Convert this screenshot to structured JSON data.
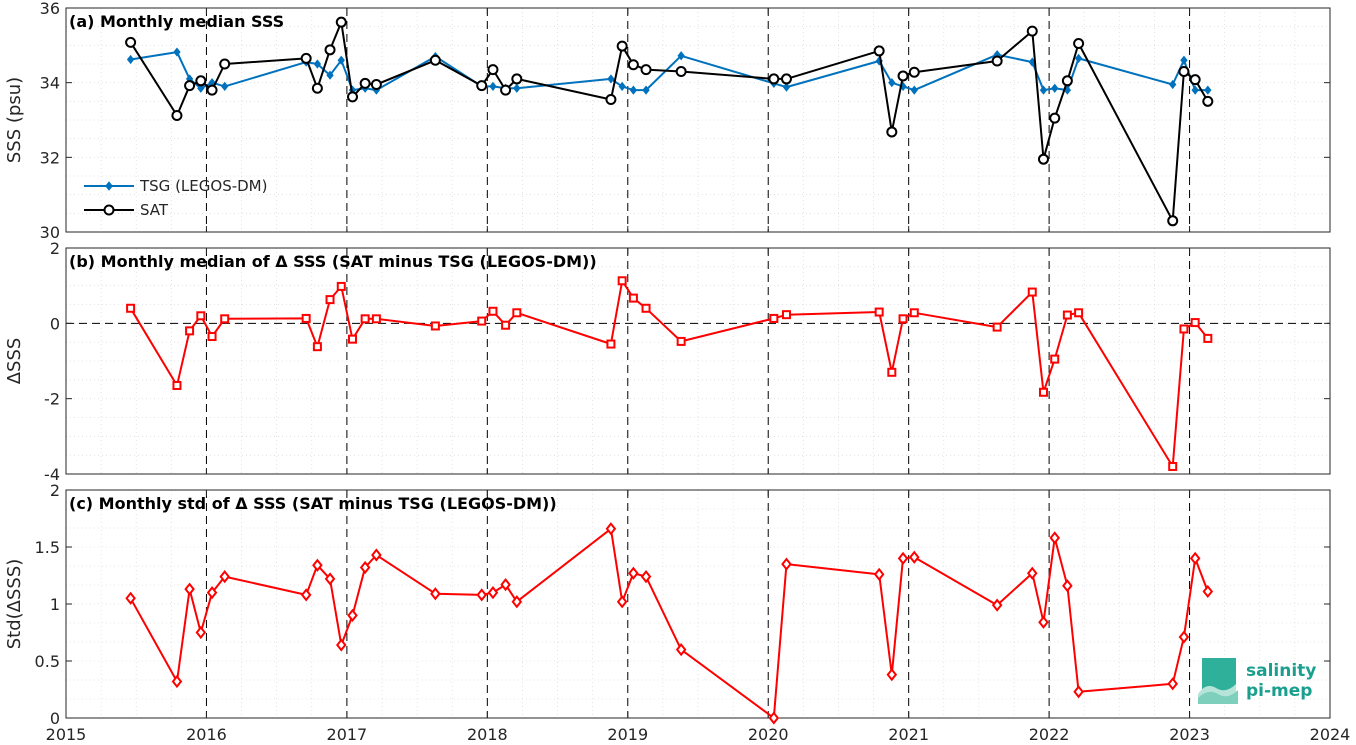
{
  "chart_data": [
    {
      "type": "line",
      "title": "(a) Monthly median SSS",
      "xlabel": "",
      "ylabel": "SSS (psu)",
      "xlim": [
        2015,
        2024
      ],
      "ylim": [
        30,
        36
      ],
      "yticks": [
        "30",
        "32",
        "34",
        "36"
      ],
      "xticks": [
        "2015",
        "2016",
        "2017",
        "2018",
        "2019",
        "2020",
        "2021",
        "2022",
        "2023",
        "2024"
      ],
      "grid": true,
      "legend_position": "bottom-left",
      "series": [
        {
          "name": "TSG (LEGOS-DM)",
          "color": "#0072bd",
          "marker": "diamond",
          "x": [
            2015.46,
            2015.79,
            2015.88,
            2015.96,
            2016.04,
            2016.13,
            2016.71,
            2016.79,
            2016.88,
            2016.96,
            2017.04,
            2017.13,
            2017.21,
            2017.63,
            2017.96,
            2018.04,
            2018.13,
            2018.21,
            2018.88,
            2018.96,
            2019.04,
            2019.13,
            2019.38,
            2020.04,
            2020.13,
            2020.79,
            2020.88,
            2020.96,
            2021.04,
            2021.63,
            2021.88,
            2021.96,
            2022.04,
            2022.13,
            2022.21,
            2022.88,
            2022.96,
            2023.04,
            2023.13
          ],
          "y": [
            34.62,
            34.82,
            34.1,
            33.85,
            34.0,
            33.9,
            34.55,
            34.5,
            34.2,
            34.6,
            33.8,
            33.85,
            33.8,
            34.7,
            33.9,
            33.9,
            33.85,
            33.85,
            34.1,
            33.9,
            33.8,
            33.8,
            34.72,
            33.98,
            33.88,
            34.58,
            34.0,
            33.9,
            33.8,
            34.75,
            34.55,
            33.8,
            33.85,
            33.8,
            34.65,
            33.95,
            34.6,
            33.8,
            33.8
          ]
        },
        {
          "name": "SAT",
          "color": "#000000",
          "marker": "circle",
          "x": [
            2015.46,
            2015.79,
            2015.88,
            2015.96,
            2016.04,
            2016.13,
            2016.71,
            2016.79,
            2016.88,
            2016.96,
            2017.04,
            2017.13,
            2017.21,
            2017.63,
            2017.96,
            2018.04,
            2018.13,
            2018.21,
            2018.88,
            2018.96,
            2019.04,
            2019.13,
            2019.38,
            2020.04,
            2020.13,
            2020.79,
            2020.88,
            2020.96,
            2021.04,
            2021.63,
            2021.88,
            2021.96,
            2022.04,
            2022.13,
            2022.21,
            2022.88,
            2022.96,
            2023.04,
            2023.13
          ],
          "y": [
            35.08,
            33.12,
            33.92,
            34.05,
            33.8,
            34.5,
            34.65,
            33.85,
            34.88,
            35.62,
            33.62,
            33.98,
            33.95,
            34.6,
            33.92,
            34.35,
            33.8,
            34.1,
            33.55,
            34.98,
            34.48,
            34.35,
            34.3,
            34.1,
            34.1,
            34.85,
            32.68,
            34.18,
            34.28,
            34.58,
            35.38,
            31.95,
            33.05,
            34.05,
            35.05,
            30.3,
            34.3,
            34.08,
            33.5
          ]
        }
      ]
    },
    {
      "type": "line",
      "title": "(b) Monthly median of Δ SSS (SAT minus TSG (LEGOS-DM))",
      "xlabel": "",
      "ylabel": "ΔSSS",
      "xlim": [
        2015,
        2024
      ],
      "ylim": [
        -4,
        2
      ],
      "yticks": [
        "-4",
        "-2",
        "0",
        "2"
      ],
      "xticks": [
        "2015",
        "2016",
        "2017",
        "2018",
        "2019",
        "2020",
        "2021",
        "2022",
        "2023",
        "2024"
      ],
      "grid": true,
      "series": [
        {
          "color": "#ff0000",
          "marker": "square",
          "x": [
            2015.46,
            2015.79,
            2015.88,
            2015.96,
            2016.04,
            2016.13,
            2016.71,
            2016.79,
            2016.88,
            2016.96,
            2017.04,
            2017.13,
            2017.21,
            2017.63,
            2017.96,
            2018.04,
            2018.13,
            2018.21,
            2018.88,
            2018.96,
            2019.04,
            2019.13,
            2019.38,
            2020.04,
            2020.13,
            2020.79,
            2020.88,
            2020.96,
            2021.04,
            2021.63,
            2021.88,
            2021.96,
            2022.04,
            2022.13,
            2022.21,
            2022.88,
            2022.96,
            2023.04,
            2023.13
          ],
          "y": [
            0.4,
            -1.65,
            -0.2,
            0.2,
            -0.35,
            0.12,
            0.13,
            -0.62,
            0.63,
            0.98,
            -0.42,
            0.12,
            0.12,
            -0.07,
            0.06,
            0.32,
            -0.05,
            0.28,
            -0.55,
            1.13,
            0.67,
            0.4,
            -0.48,
            0.13,
            0.23,
            0.3,
            -1.3,
            0.12,
            0.28,
            -0.1,
            0.83,
            -1.83,
            -0.95,
            0.22,
            0.28,
            -3.8,
            -0.15,
            0.02,
            -0.4
          ]
        }
      ]
    },
    {
      "type": "line",
      "title": "(c) Monthly std of Δ SSS (SAT minus TSG (LEGOS-DM))",
      "xlabel": "",
      "ylabel": "Std(ΔSSS)",
      "xlim": [
        2015,
        2024
      ],
      "ylim": [
        0,
        2
      ],
      "yticks": [
        "0",
        "0.5",
        "1",
        "1.5",
        "2"
      ],
      "xticks": [
        "2015",
        "2016",
        "2017",
        "2018",
        "2019",
        "2020",
        "2021",
        "2022",
        "2023",
        "2024"
      ],
      "grid": true,
      "series": [
        {
          "color": "#ff0000",
          "marker": "diamond",
          "x": [
            2015.46,
            2015.79,
            2015.88,
            2015.96,
            2016.04,
            2016.13,
            2016.71,
            2016.79,
            2016.88,
            2016.96,
            2017.04,
            2017.13,
            2017.21,
            2017.63,
            2017.96,
            2018.04,
            2018.13,
            2018.21,
            2018.88,
            2018.96,
            2019.04,
            2019.13,
            2019.38,
            2020.04,
            2020.13,
            2020.79,
            2020.88,
            2020.96,
            2021.04,
            2021.63,
            2021.88,
            2021.96,
            2022.04,
            2022.13,
            2022.21,
            2022.88,
            2022.96,
            2023.04,
            2023.13
          ],
          "y": [
            1.05,
            0.32,
            1.13,
            0.75,
            1.1,
            1.24,
            1.08,
            1.34,
            1.22,
            0.64,
            0.9,
            1.32,
            1.43,
            1.09,
            1.08,
            1.1,
            1.17,
            1.02,
            1.66,
            1.02,
            1.27,
            1.24,
            0.6,
            0.0,
            1.35,
            1.26,
            0.38,
            1.4,
            1.41,
            0.99,
            1.27,
            0.84,
            1.58,
            1.16,
            0.23,
            0.3,
            0.71,
            1.4,
            1.11
          ]
        }
      ]
    }
  ],
  "logo": {
    "line1": "salinity",
    "line2": "pi-mep",
    "color": "#1a9f8f"
  }
}
